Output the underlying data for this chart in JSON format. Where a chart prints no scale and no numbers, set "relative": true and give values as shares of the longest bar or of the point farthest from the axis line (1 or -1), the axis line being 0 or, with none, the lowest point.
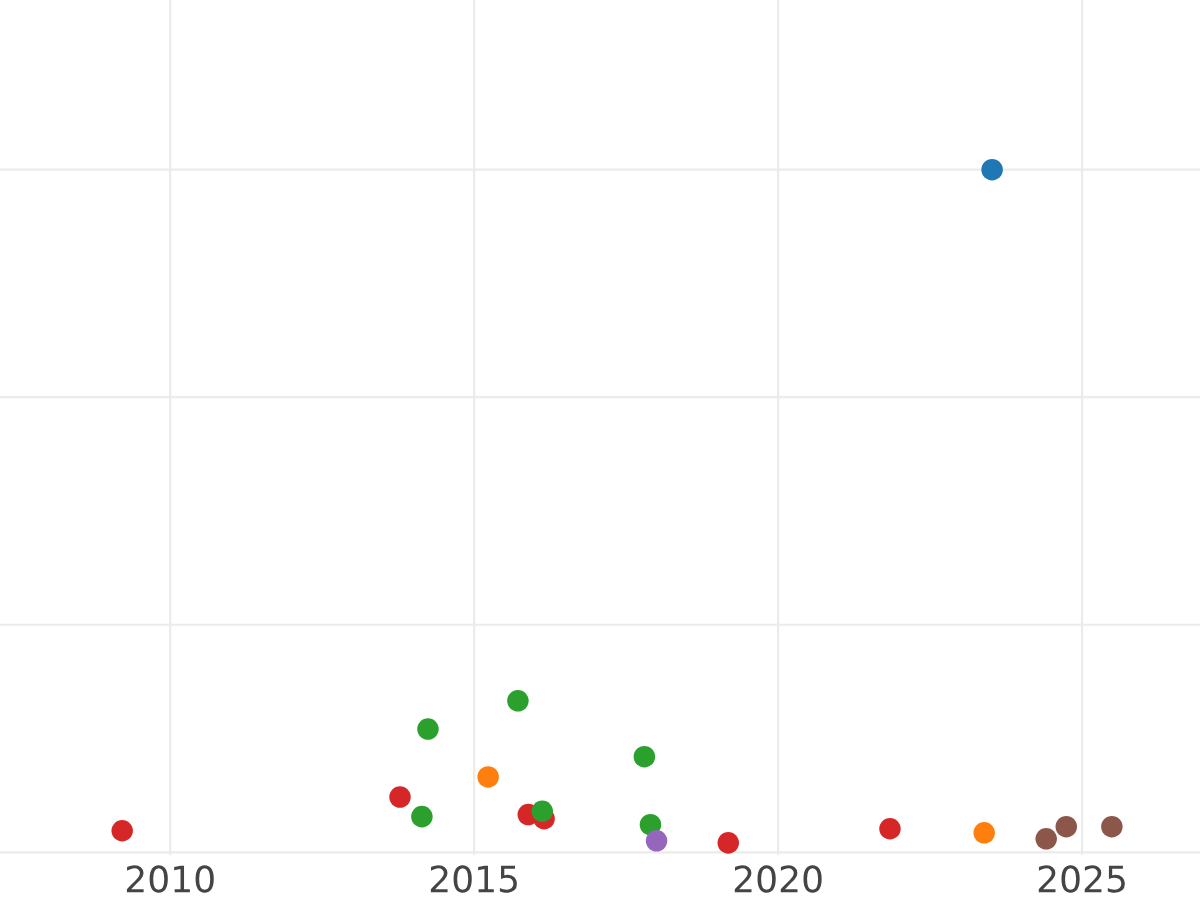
{
  "chart_data": {
    "type": "scatter",
    "relative": true,
    "grid": true,
    "tick_labels": "x",
    "marker": "circle",
    "xlim": [
      2007.2,
      2026.94
    ],
    "xticks": [
      2010,
      2015,
      2020,
      2025
    ],
    "x": [
      2009.21,
      2014.24,
      2015.72,
      2017.8,
      2015.23,
      2013.78,
      2014.14,
      2015.89,
      2016.15,
      2017.9,
      2018.0,
      2019.18,
      2021.84,
      2023.39,
      2024.41,
      2024.74,
      2025.49,
      2023.52,
      2016.12
    ],
    "values": [
      0.018,
      0.169,
      0.211,
      0.128,
      0.098,
      0.068,
      0.039,
      0.042,
      0.036,
      0.027,
      0.003,
      0,
      0.021,
      0.015,
      0.006,
      0.024,
      0.024,
      1,
      0.047
    ],
    "colors": [
      "#d62728",
      "#2ca02c",
      "#2ca02c",
      "#2ca02c",
      "#ff7f0e",
      "#d62728",
      "#2ca02c",
      "#d62728",
      "#d62728",
      "#2ca02c",
      "#9467bd",
      "#d62728",
      "#d62728",
      "#ff7f0e",
      "#8c564b",
      "#8c564b",
      "#8c564b",
      "#1f77b4",
      "#2ca02c"
    ]
  }
}
